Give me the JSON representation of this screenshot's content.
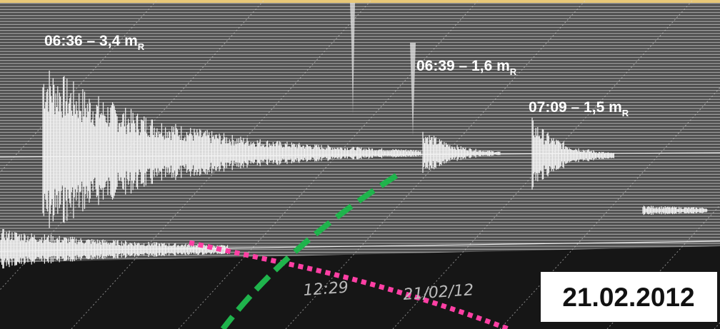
{
  "labels": [
    {
      "text": "06:36 – 3,4 m",
      "sub": "R"
    },
    {
      "text": "06:39 – 1,6 m",
      "sub": "R"
    },
    {
      "text": "07:09 – 1,5 m",
      "sub": "R"
    }
  ],
  "handwriting": [
    "12:29",
    "21/02/12"
  ],
  "date_box": "21.02.2012"
}
